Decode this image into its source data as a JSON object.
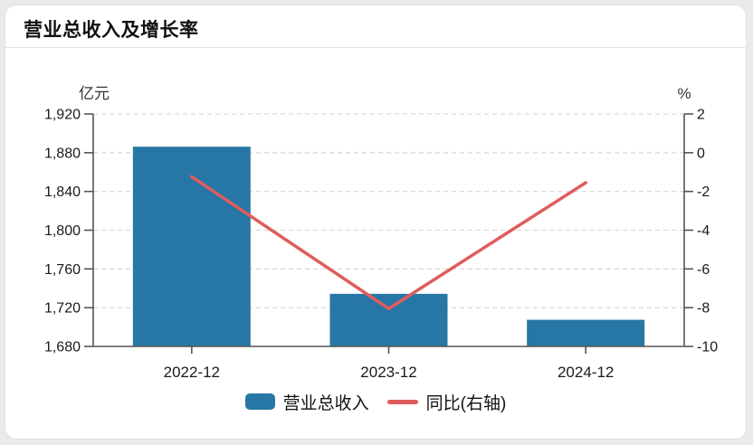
{
  "card": {
    "title": "营业总收入及增长率"
  },
  "chart_data": {
    "type": "bar",
    "subtype": "bar+line dual axis",
    "categories": [
      "2022-12",
      "2023-12",
      "2024-12"
    ],
    "series": [
      {
        "name": "营业总收入",
        "type": "bar",
        "axis": "left",
        "unit": "亿元",
        "color": "#2677a5",
        "values": [
          1886.2,
          1734.3,
          1707.5
        ]
      },
      {
        "name": "同比(右轴)",
        "type": "line",
        "axis": "right",
        "unit": "%",
        "color": "#e05c5c",
        "values": [
          -1.24,
          -8.05,
          -1.55
        ]
      }
    ],
    "left_axis": {
      "unit": "亿元",
      "min": 1680,
      "max": 1920,
      "step": 40,
      "tick_labels": [
        "1,920",
        "1,880",
        "1,840",
        "1,800",
        "1,760",
        "1,720",
        "1,680"
      ]
    },
    "right_axis": {
      "unit": "%",
      "min": -10,
      "max": 2,
      "step": 2,
      "tick_labels": [
        "2",
        "0",
        "-2",
        "-4",
        "-6",
        "-8",
        "-10"
      ]
    },
    "grid": "horizontal dashed, on",
    "legend_position": "bottom-center",
    "title": "营业总收入及增长率"
  },
  "legend": {
    "items": [
      {
        "label": "营业总收入",
        "swatch": "bar",
        "color": "#2677a5"
      },
      {
        "label": "同比(右轴)",
        "swatch": "line",
        "color": "#e05c5c"
      }
    ]
  },
  "colors": {
    "bar": "#2677a5",
    "line": "#e05c5c",
    "card_bg": "#ffffff",
    "page_bg": "#e9eaeb",
    "grid": "#dcdcdc",
    "axis": "#555555",
    "tick_text": "#1a1a1a",
    "unit_text": "#333333",
    "separator": "#e5e5e5"
  }
}
